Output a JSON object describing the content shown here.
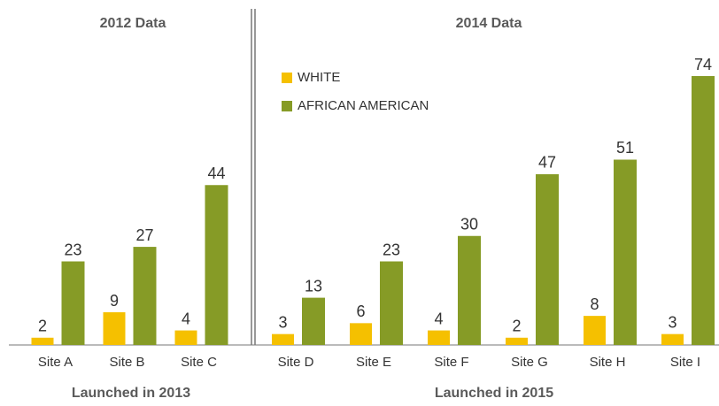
{
  "chart_data": [
    {
      "type": "bar",
      "title": "2012 Data",
      "xlabel": "Launched in 2013",
      "categories": [
        "Site A",
        "Site B",
        "Site C"
      ],
      "series": [
        {
          "color": "#f5c000",
          "values": [
            2,
            9,
            4
          ]
        },
        {
          "color": "#869b26",
          "values": [
            23,
            27,
            44
          ]
        }
      ]
    },
    {
      "type": "bar",
      "title": "2014 Data",
      "xlabel": "Launched in 2015",
      "categories": [
        "Site D",
        "Site E",
        "Site F",
        "Site G",
        "Site H",
        "Site I"
      ],
      "legend": "upper left",
      "series": [
        {
          "name": "WHITE",
          "color": "#f5c000",
          "values": [
            3,
            6,
            4,
            2,
            8,
            3
          ]
        },
        {
          "name": "AFRICAN AMERICAN",
          "color": "#869b26",
          "values": [
            13,
            23,
            30,
            47,
            51,
            74
          ]
        }
      ]
    }
  ]
}
